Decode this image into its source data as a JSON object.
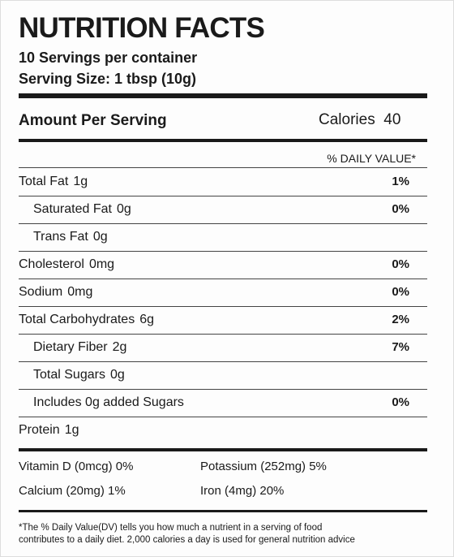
{
  "header": {
    "title": "NUTRITION FACTS",
    "servings": "10 Servings per container",
    "serving_size": "Serving Size: 1 tbsp (10g)"
  },
  "amount": {
    "label": "Amount Per Serving",
    "calories_label": "Calories",
    "calories": 40
  },
  "daily_value_header": "% DAILY VALUE*",
  "nutrients": [
    {
      "name": "Total Fat",
      "amount": "1g",
      "dv": "1%"
    },
    {
      "name": "Saturated Fat",
      "amount": "0g",
      "dv": "0%"
    },
    {
      "name": "Trans Fat",
      "amount": "0g"
    },
    {
      "name": "Cholesterol",
      "amount": "0mg",
      "dv": "0%"
    },
    {
      "name": "Sodium",
      "amount": "0mg",
      "dv": "0%"
    },
    {
      "name": "Total Carbohydrates",
      "amount": "6g",
      "dv": "2%"
    },
    {
      "name": "Dietary Fiber",
      "amount": "2g",
      "dv": "7%"
    },
    {
      "name": "Total Sugars",
      "amount": "0g"
    },
    {
      "name": "Includes 0g added Sugars",
      "dv": "0%"
    },
    {
      "name": "Protein",
      "amount": "1g"
    }
  ],
  "vitamins": [
    "Vitamin D (0mcg) 0%",
    "Potassium (252mg) 5%",
    "Calcium (20mg) 1%",
    "Iron (4mg) 20%"
  ],
  "footnote": [
    "*The % Daily Value(DV) tells you how much a nutrient in a serving of food",
    "contributes to a daily diet. 2,000 calories a day is used for general nutrition advice"
  ]
}
